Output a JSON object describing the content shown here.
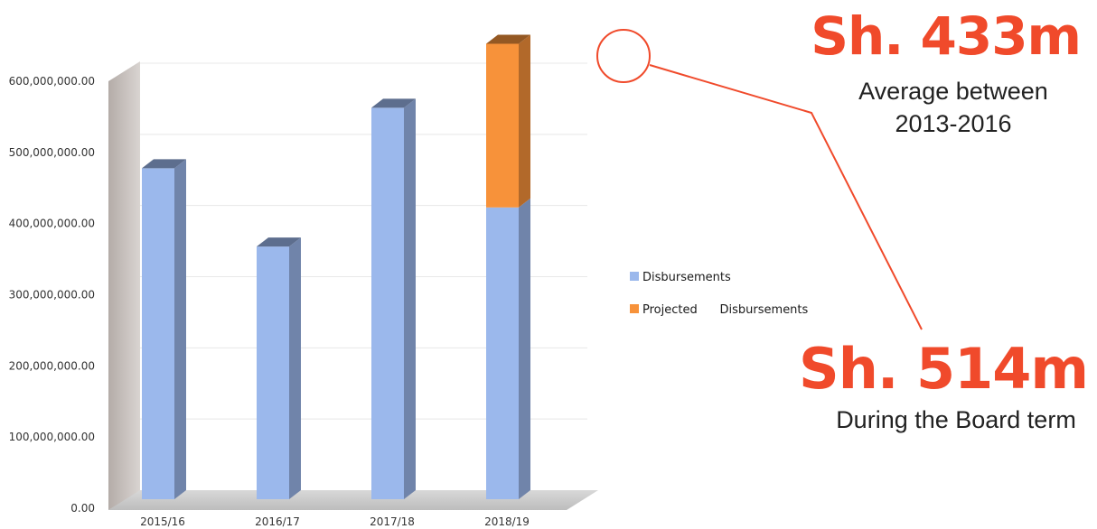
{
  "chart_data": {
    "type": "bar",
    "stacked": true,
    "title": "",
    "xlabel": "",
    "ylabel": "",
    "categories": [
      "2015/16",
      "2016/17",
      "2017/18",
      "2018/19"
    ],
    "series": [
      {
        "name": "Disbursements",
        "color": "#9bb8ec",
        "values": [
          465000000,
          355000000,
          550000000,
          410000000
        ]
      },
      {
        "name": "Projected      Disbursements",
        "color": "#f7923a",
        "values": [
          0,
          0,
          0,
          230000000
        ]
      }
    ],
    "ylim": [
      0,
      600000000
    ],
    "yticks": [
      "0.00",
      "100,000,000.00",
      "200,000,000.00",
      "300,000,000.00",
      "400,000,000.00",
      "500,000,000.00",
      "600,000,000.00"
    ],
    "grid": true,
    "legend_position": "right",
    "style": "3d"
  },
  "annotations": {
    "stat1": {
      "value": "Sh. 433m",
      "caption_line1": "Average between",
      "caption_line2": "2013-2016"
    },
    "stat2": {
      "value": "Sh. 514m",
      "caption": "During the Board term"
    }
  },
  "colors": {
    "accent": "#f04a2b",
    "wall": "#bdb6b2",
    "floor": "#cfcfcf"
  }
}
